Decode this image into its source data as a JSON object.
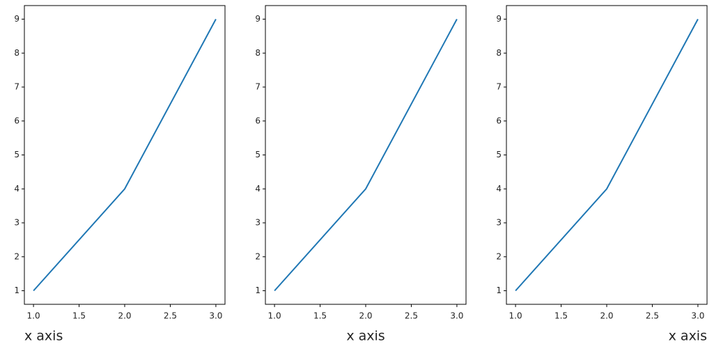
{
  "chart_data": [
    {
      "type": "line",
      "x": [
        1,
        2,
        3
      ],
      "series": [
        {
          "color": "#1f77b4",
          "values": [
            1,
            4,
            9
          ]
        }
      ],
      "xlabel": "x axis",
      "xlabel_loc": "left",
      "xlim": [
        0.9,
        3.1
      ],
      "ylim": [
        0.6,
        9.4
      ],
      "xticks": [
        {
          "value": 1,
          "label": "1.0"
        },
        {
          "value": 1.5,
          "label": "1.5"
        },
        {
          "value": 2,
          "label": "2.0"
        },
        {
          "value": 2.5,
          "label": "2.5"
        },
        {
          "value": 3,
          "label": "3.0"
        }
      ],
      "yticks": [
        1,
        2,
        3,
        4,
        5,
        6,
        7,
        8,
        9
      ]
    },
    {
      "type": "line",
      "x": [
        1,
        2,
        3
      ],
      "series": [
        {
          "color": "#1f77b4",
          "values": [
            1,
            4,
            9
          ]
        }
      ],
      "xlabel": "x axis",
      "xlabel_loc": "center",
      "xlim": [
        0.9,
        3.1
      ],
      "ylim": [
        0.6,
        9.4
      ],
      "xticks": [
        {
          "value": 1,
          "label": "1.0"
        },
        {
          "value": 1.5,
          "label": "1.5"
        },
        {
          "value": 2,
          "label": "2.0"
        },
        {
          "value": 2.5,
          "label": "2.5"
        },
        {
          "value": 3,
          "label": "3.0"
        }
      ],
      "yticks": [
        1,
        2,
        3,
        4,
        5,
        6,
        7,
        8,
        9
      ]
    },
    {
      "type": "line",
      "x": [
        1,
        2,
        3
      ],
      "series": [
        {
          "color": "#1f77b4",
          "values": [
            1,
            4,
            9
          ]
        }
      ],
      "xlabel": "x axis",
      "xlabel_loc": "right",
      "xlim": [
        0.9,
        3.1
      ],
      "ylim": [
        0.6,
        9.4
      ],
      "xticks": [
        {
          "value": 1,
          "label": "1.0"
        },
        {
          "value": 1.5,
          "label": "1.5"
        },
        {
          "value": 2,
          "label": "2.0"
        },
        {
          "value": 2.5,
          "label": "2.5"
        },
        {
          "value": 3,
          "label": "3.0"
        }
      ],
      "yticks": [
        1,
        2,
        3,
        4,
        5,
        6,
        7,
        8,
        9
      ]
    }
  ]
}
